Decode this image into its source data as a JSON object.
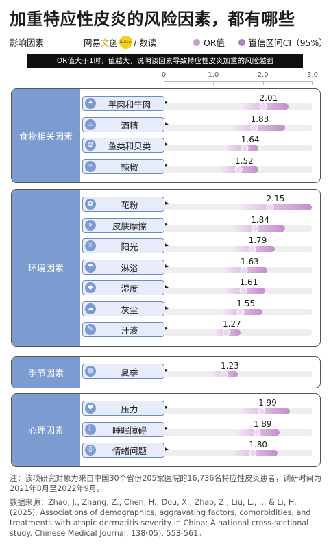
{
  "title": "加重特应性皮炎的风险因素，都有哪些",
  "legend": {
    "factor_label": "影响因素",
    "brand_left": "网易",
    "brand_mid": "文",
    "brand_right": "创",
    "brand_dot_text": "NetEase",
    "brand_suffix": "/ 数读",
    "or_label": "OR值",
    "ci_label": "置信区间CI（95%）"
  },
  "banner": "OR值大于1时，值越大，说明该因素导致特应性皮炎加重的风险越强",
  "axis": {
    "ticks": [
      "0",
      "1.0",
      "2.0",
      "3.0"
    ]
  },
  "groups": [
    {
      "label": "食物相关因素",
      "items": [
        {
          "name": "羊肉和牛肉",
          "icon": "meat-icon",
          "glyph": "✦"
        },
        {
          "name": "酒精",
          "icon": "bottle-icon",
          "glyph": "♨"
        },
        {
          "name": "鱼类和贝类",
          "icon": "fish-icon",
          "glyph": "❂"
        },
        {
          "name": "辣椒",
          "icon": "pepper-icon",
          "glyph": "✧"
        }
      ]
    },
    {
      "label": "环境因素",
      "items": [
        {
          "name": "花粉",
          "icon": "pollen-icon",
          "glyph": "✿"
        },
        {
          "name": "皮肤摩擦",
          "icon": "friction-icon",
          "glyph": "»"
        },
        {
          "name": "阳光",
          "icon": "sun-icon",
          "glyph": "☼"
        },
        {
          "name": "淋浴",
          "icon": "shower-icon",
          "glyph": "☂"
        },
        {
          "name": "湿度",
          "icon": "droplet-icon",
          "glyph": "◆"
        },
        {
          "name": "灰尘",
          "icon": "dust-icon",
          "glyph": "☁"
        },
        {
          "name": "汗液",
          "icon": "sweat-icon",
          "glyph": "✎"
        }
      ]
    },
    {
      "label": "季节因素",
      "items": [
        {
          "name": "夏季",
          "icon": "summer-icon",
          "glyph": "▤"
        }
      ]
    },
    {
      "label": "心理因素",
      "items": [
        {
          "name": "压力",
          "icon": "stress-icon",
          "glyph": "♥"
        },
        {
          "name": "睡眠障碍",
          "icon": "sleep-icon",
          "glyph": "☾"
        },
        {
          "name": "情绪问题",
          "icon": "mood-icon",
          "glyph": "☺"
        }
      ]
    }
  ],
  "chart_data": {
    "type": "forest",
    "title": "加重特应性皮炎的风险因素，都有哪些",
    "xlim": [
      0,
      3.0
    ],
    "series": [
      {
        "group": "食物相关因素",
        "categories": [
          "羊肉和牛肉",
          "酒精",
          "鱼类和贝类",
          "辣椒"
        ],
        "or": [
          2.01,
          1.83,
          1.64,
          1.52
        ],
        "ci": [
          [
            1.6,
            2.52
          ],
          [
            1.4,
            2.45
          ],
          [
            1.25,
            1.92
          ],
          [
            1.15,
            1.92
          ]
        ]
      },
      {
        "group": "环境因素",
        "categories": [
          "花粉",
          "皮肤摩擦",
          "阳光",
          "淋浴",
          "湿度",
          "灰尘",
          "汗液"
        ],
        "or": [
          2.15,
          1.84,
          1.79,
          1.63,
          1.61,
          1.55,
          1.27
        ],
        "ci": [
          [
            1.55,
            3.0
          ],
          [
            1.4,
            2.45
          ],
          [
            1.45,
            2.25
          ],
          [
            1.25,
            2.1
          ],
          [
            1.25,
            2.05
          ],
          [
            1.2,
            2.0
          ],
          [
            1.05,
            1.55
          ]
        ]
      },
      {
        "group": "季节因素",
        "categories": [
          "夏季"
        ],
        "or": [
          1.23
        ],
        "ci": [
          [
            1.0,
            1.5
          ]
        ]
      },
      {
        "group": "心理因素",
        "categories": [
          "压力",
          "睡眠障碍",
          "情绪问题"
        ],
        "or": [
          1.99,
          1.89,
          1.8
        ],
        "ci": [
          [
            1.55,
            2.55
          ],
          [
            1.5,
            2.35
          ],
          [
            1.4,
            2.3
          ]
        ]
      }
    ]
  },
  "note": "注：该项研究对象为来自中国30个省份205家医院的16,736名特应性皮炎患者，调研时间为2021年8月至2022年9月。",
  "source": "数据来源：Zhao, J., Zhang, Z., Chen, H., Dou, X., Zhao, Z., Liu, L., ... & Li, H. (2025). Associations of demographics, aggravating factors, comorbidities, and treatments with atopic dermatitis severity in China: A national cross-sectional study. Chinese Medical Journal, 138(05), 553-561。"
}
